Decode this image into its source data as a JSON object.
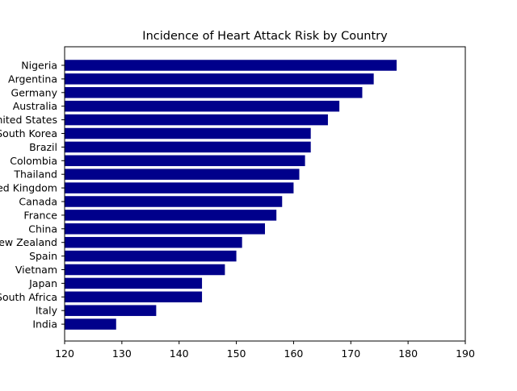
{
  "chart_data": {
    "type": "bar",
    "orientation": "horizontal",
    "title": "Incidence of Heart Attack Risk by Country",
    "xlabel": "",
    "ylabel": "",
    "categories": [
      "Nigeria",
      "Argentina",
      "Germany",
      "Australia",
      "United States",
      "South Korea",
      "Brazil",
      "Colombia",
      "Thailand",
      "United Kingdom",
      "Canada",
      "France",
      "China",
      "New Zealand",
      "Spain",
      "Vietnam",
      "Japan",
      "South Africa",
      "Italy",
      "India"
    ],
    "values": [
      178,
      174,
      172,
      168,
      166,
      163,
      163,
      162,
      161,
      160,
      158,
      157,
      155,
      151,
      150,
      148,
      144,
      144,
      136,
      129
    ],
    "xlim": [
      120,
      190
    ],
    "xticks": [
      120,
      130,
      140,
      150,
      160,
      170,
      180,
      190
    ],
    "grid": false,
    "bar_color": "#00008b"
  }
}
